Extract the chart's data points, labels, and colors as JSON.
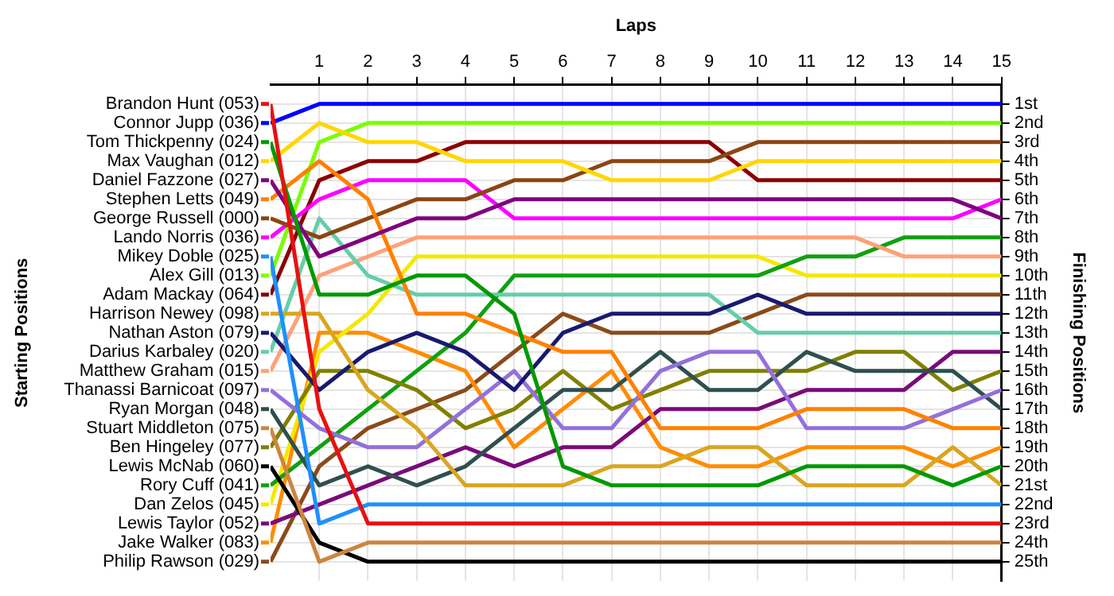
{
  "chart_data": {
    "type": "line",
    "xlabel": "Laps",
    "ylabel": "Finishing Positions",
    "annotations": [
      "Starting Positions"
    ],
    "x": [
      0,
      1,
      2,
      3,
      4,
      5,
      6,
      7,
      8,
      9,
      10,
      11,
      12,
      13,
      14,
      15
    ],
    "xlim": [
      0,
      15
    ],
    "xticks": [
      1,
      2,
      3,
      4,
      5,
      6,
      7,
      8,
      9,
      10,
      11,
      12,
      13,
      14,
      15
    ],
    "ylim": [
      26,
      0
    ],
    "yticks": [
      {
        "value": 1,
        "label": "1st"
      },
      {
        "value": 2,
        "label": "2nd"
      },
      {
        "value": 3,
        "label": "3rd"
      },
      {
        "value": 4,
        "label": "4th"
      },
      {
        "value": 5,
        "label": "5th"
      },
      {
        "value": 6,
        "label": "6th"
      },
      {
        "value": 7,
        "label": "7th"
      },
      {
        "value": 8,
        "label": "8th"
      },
      {
        "value": 9,
        "label": "9th"
      },
      {
        "value": 10,
        "label": "10th"
      },
      {
        "value": 11,
        "label": "11th"
      },
      {
        "value": 12,
        "label": "12th"
      },
      {
        "value": 13,
        "label": "13th"
      },
      {
        "value": 14,
        "label": "14th"
      },
      {
        "value": 15,
        "label": "15th"
      },
      {
        "value": 16,
        "label": "16th"
      },
      {
        "value": 17,
        "label": "17th"
      },
      {
        "value": 18,
        "label": "18th"
      },
      {
        "value": 19,
        "label": "19th"
      },
      {
        "value": 20,
        "label": "20th"
      },
      {
        "value": 21,
        "label": "21st"
      },
      {
        "value": 22,
        "label": "22nd"
      },
      {
        "value": 23,
        "label": "23rd"
      },
      {
        "value": 24,
        "label": "24th"
      },
      {
        "value": 25,
        "label": "25th"
      }
    ],
    "grid": true,
    "legend": "left",
    "marker": "none",
    "line_style": "solid",
    "series": [
      {
        "name": "Brandon Hunt (053)",
        "color": "#e81010",
        "values": [
          1,
          17,
          23,
          23,
          23,
          23,
          23,
          23,
          23,
          23,
          23,
          23,
          23,
          23,
          23,
          23
        ]
      },
      {
        "name": "Connor Jupp (036)",
        "color": "#0000ff",
        "values": [
          2,
          1,
          1,
          1,
          1,
          1,
          1,
          1,
          1,
          1,
          1,
          1,
          1,
          1,
          1,
          1
        ]
      },
      {
        "name": "Tom Thickpenny (024)",
        "color": "#009900",
        "values": [
          3,
          11,
          11,
          10,
          10,
          12,
          20,
          21,
          21,
          21,
          21,
          20,
          20,
          20,
          21,
          20
        ]
      },
      {
        "name": "Max Vaughan (012)",
        "color": "#ffd700",
        "values": [
          4,
          2,
          3,
          3,
          4,
          4,
          4,
          5,
          5,
          5,
          4,
          4,
          4,
          4,
          4,
          4
        ]
      },
      {
        "name": "Daniel Fazzone (027)",
        "color": "#800080",
        "values": [
          5,
          9,
          8,
          7,
          7,
          6,
          6,
          6,
          6,
          6,
          6,
          6,
          6,
          6,
          6,
          7
        ]
      },
      {
        "name": "Stephen Letts (049)",
        "color": "#ff8000",
        "values": [
          6,
          4,
          6,
          12,
          12,
          13,
          14,
          14,
          18,
          18,
          18,
          17,
          17,
          17,
          18,
          18
        ]
      },
      {
        "name": "George Russell (000)",
        "color": "#8b4513",
        "values": [
          7,
          8,
          7,
          6,
          6,
          5,
          5,
          4,
          4,
          4,
          3,
          3,
          3,
          3,
          3,
          3
        ]
      },
      {
        "name": "Lando Norris (036)",
        "color": "#ff00ff",
        "values": [
          8,
          6,
          5,
          5,
          5,
          7,
          7,
          7,
          7,
          7,
          7,
          7,
          7,
          7,
          7,
          6
        ]
      },
      {
        "name": "Mikey Doble (025)",
        "color": "#1e90ff",
        "values": [
          9,
          23,
          22,
          22,
          22,
          22,
          22,
          22,
          22,
          22,
          22,
          22,
          22,
          22,
          22,
          22
        ]
      },
      {
        "name": "Alex Gill (013)",
        "color": "#7cfc00",
        "values": [
          10,
          3,
          2,
          2,
          2,
          2,
          2,
          2,
          2,
          2,
          2,
          2,
          2,
          2,
          2,
          2
        ]
      },
      {
        "name": "Adam Mackay (064)",
        "color": "#8b0000",
        "values": [
          11,
          5,
          4,
          4,
          3,
          3,
          3,
          3,
          3,
          3,
          5,
          5,
          5,
          5,
          5,
          5
        ]
      },
      {
        "name": "Harrison Newey (098)",
        "color": "#daa520",
        "values": [
          12,
          12,
          16,
          18,
          21,
          21,
          21,
          20,
          20,
          19,
          19,
          21,
          21,
          21,
          19,
          21
        ]
      },
      {
        "name": "Nathan Aston (079)",
        "color": "#191970",
        "values": [
          13,
          16,
          14,
          13,
          14,
          16,
          13,
          12,
          12,
          12,
          11,
          12,
          12,
          12,
          12,
          12
        ]
      },
      {
        "name": "Darius Karbaley (020)",
        "color": "#66cdaa",
        "values": [
          14,
          7,
          10,
          11,
          11,
          11,
          11,
          11,
          11,
          11,
          13,
          13,
          13,
          13,
          13,
          13
        ]
      },
      {
        "name": "Matthew Graham (015)",
        "color": "#ffa07a",
        "values": [
          15,
          10,
          9,
          8,
          8,
          8,
          8,
          8,
          8,
          8,
          8,
          8,
          8,
          9,
          9,
          9
        ]
      },
      {
        "name": "Thanassi Barnicoat (097)",
        "color": "#9370db",
        "values": [
          16,
          18,
          19,
          19,
          17,
          15,
          18,
          18,
          15,
          14,
          14,
          18,
          18,
          18,
          17,
          16
        ]
      },
      {
        "name": "Ryan Morgan (048)",
        "color": "#2f4f4f",
        "values": [
          17,
          21,
          20,
          21,
          20,
          18,
          16,
          16,
          14,
          16,
          16,
          14,
          15,
          15,
          15,
          17
        ]
      },
      {
        "name": "Stuart Middleton (075)",
        "color": "#cd853f",
        "values": [
          18,
          25,
          24,
          24,
          24,
          24,
          24,
          24,
          24,
          24,
          24,
          24,
          24,
          24,
          24,
          24
        ]
      },
      {
        "name": "Ben Hingeley (077)",
        "color": "#808000",
        "values": [
          19,
          15,
          15,
          16,
          18,
          17,
          15,
          17,
          16,
          15,
          15,
          15,
          14,
          14,
          16,
          15
        ]
      },
      {
        "name": "Lewis McNab (060)",
        "color": "#000000",
        "values": [
          20,
          24,
          25,
          25,
          25,
          25,
          25,
          25,
          25,
          25,
          25,
          25,
          25,
          25,
          25,
          25
        ]
      },
      {
        "name": "Rory Cuff (041)",
        "color": "#10a010",
        "values": [
          21,
          19,
          17,
          15,
          13,
          10,
          10,
          10,
          10,
          10,
          10,
          9,
          9,
          8,
          8,
          8
        ]
      },
      {
        "name": "Dan Zelos (045)",
        "color": "#f5e800",
        "values": [
          22,
          14,
          12,
          9,
          9,
          9,
          9,
          9,
          9,
          9,
          9,
          10,
          10,
          10,
          10,
          10
        ]
      },
      {
        "name": "Lewis Taylor (052)",
        "color": "#7a0a7a",
        "values": [
          23,
          22,
          21,
          20,
          19,
          20,
          19,
          19,
          17,
          17,
          17,
          16,
          16,
          16,
          14,
          14
        ]
      },
      {
        "name": "Jake Walker (083)",
        "color": "#ff8c00",
        "values": [
          24,
          13,
          13,
          14,
          15,
          19,
          17,
          15,
          19,
          20,
          20,
          19,
          19,
          19,
          20,
          19
        ]
      },
      {
        "name": "Philip Rawson (029)",
        "color": "#8b4a1a",
        "values": [
          25,
          20,
          18,
          17,
          16,
          14,
          12,
          13,
          13,
          13,
          12,
          11,
          11,
          11,
          11,
          11
        ]
      }
    ]
  }
}
